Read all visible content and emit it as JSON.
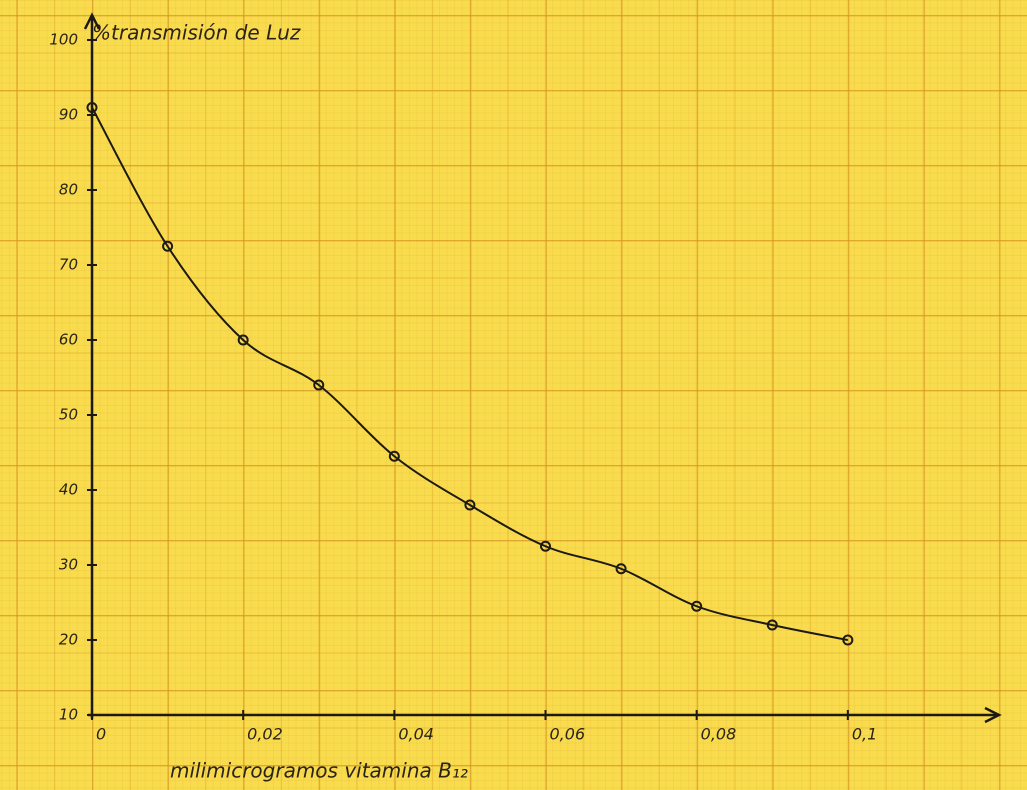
{
  "chart_data": {
    "type": "scatter",
    "title": "%transmisión de Luz",
    "x_label": "milimicrogramos vitamina B₁₂",
    "series": [
      {
        "name": null,
        "color": "#1d1a14",
        "x": [
          0,
          0.01,
          0.02,
          0.03,
          0.04,
          0.05,
          0.06,
          0.07,
          0.08,
          0.09,
          0.1
        ],
        "values": [
          91,
          72.5,
          60,
          54,
          44.5,
          38,
          32.5,
          29.5,
          24.5,
          22,
          20
        ]
      }
    ],
    "xlim": [
      0,
      0.12
    ],
    "ylim": [
      10,
      100
    ],
    "xticks": [
      0,
      {
        "value": 0.02,
        "label": "0,02"
      },
      {
        "value": 0.04,
        "label": "0,04"
      },
      {
        "value": 0.06,
        "label": "0,06"
      },
      {
        "value": 0.08,
        "label": "0,08"
      },
      {
        "value": 0.1,
        "label": "0,1"
      }
    ],
    "yticks": [
      10,
      20,
      30,
      40,
      50,
      60,
      70,
      80,
      90,
      100
    ]
  }
}
